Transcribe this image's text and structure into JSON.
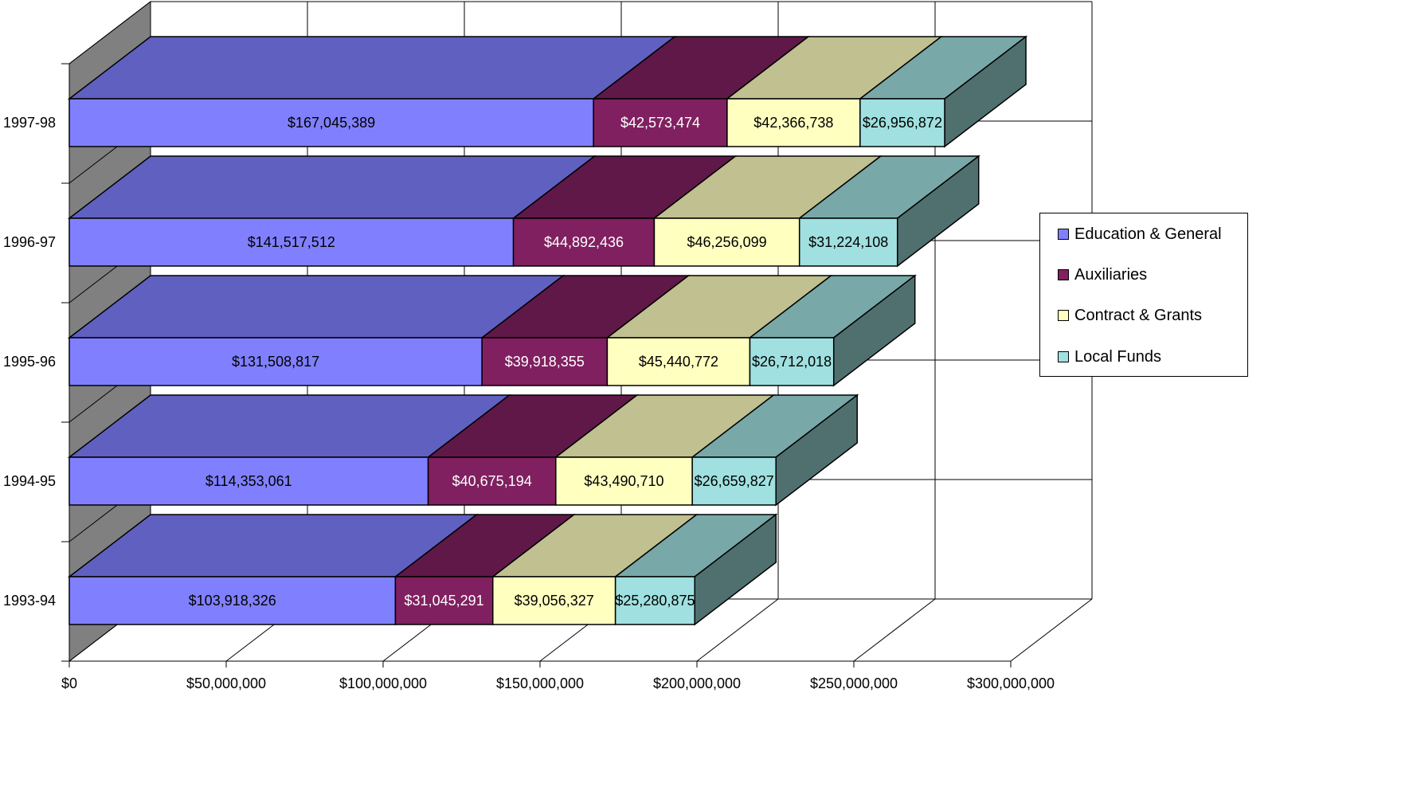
{
  "chart_data": {
    "type": "bar",
    "orientation": "horizontal",
    "stacked": true,
    "three_d": true,
    "categories": [
      "1993-94",
      "1994-95",
      "1995-96",
      "1996-97",
      "1997-98"
    ],
    "series": [
      {
        "name": "Education & General",
        "color": "#8080FF",
        "top_color": "#6060C0",
        "side_color": "#5050A0",
        "values": [
          103918326,
          114353061,
          131508817,
          141517512,
          167045389
        ],
        "labels": [
          "$103,918,326",
          "$114,353,061",
          "$131,508,817",
          "$141,517,512",
          "$167,045,389"
        ]
      },
      {
        "name": "Auxiliaries",
        "color": "#802060",
        "top_color": "#601848",
        "side_color": "#501040",
        "values": [
          31045291,
          40675194,
          39918355,
          44892436,
          42573474
        ],
        "labels": [
          "$31,045,291",
          "$40,675,194",
          "$39,918,355",
          "$44,892,436",
          "$42,573,474"
        ]
      },
      {
        "name": "Contract & Grants",
        "color": "#FFFFC0",
        "top_color": "#C0C090",
        "side_color": "#A0A078",
        "values": [
          39056327,
          43490710,
          45440772,
          46256099,
          42366738
        ],
        "labels": [
          "$39,056,327",
          "$43,490,710",
          "$45,440,772",
          "$46,256,099",
          "$42,366,738"
        ]
      },
      {
        "name": "Local Funds",
        "color": "#A0E0E0",
        "top_color": "#78A8A8",
        "side_color": "#507070",
        "values": [
          25280875,
          26659827,
          26712018,
          31224108,
          26956872
        ],
        "labels": [
          "$25,280,875",
          "$26,659,827",
          "$26,712,018",
          "$31,224,108",
          "$26,956,872"
        ]
      }
    ],
    "xlim": [
      0,
      300000000
    ],
    "x_ticks": [
      0,
      50000000,
      100000000,
      150000000,
      200000000,
      250000000,
      300000000
    ],
    "x_tick_labels": [
      "$0",
      "$50,000,000",
      "$100,000,000",
      "$150,000,000",
      "$200,000,000",
      "$250,000,000",
      "$300,000,000"
    ],
    "grid": true,
    "legend_position": "right",
    "title": "",
    "xlabel": "",
    "ylabel": ""
  }
}
